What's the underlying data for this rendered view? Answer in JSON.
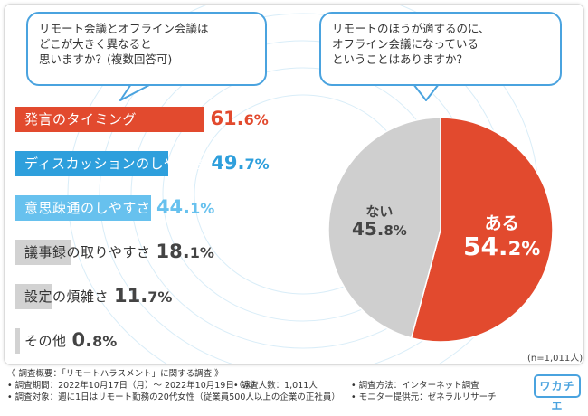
{
  "questions": {
    "left": "リモート会議とオフライン会議は\nどこが大きく異なると\n思いますか？(複数回答可)",
    "right": "リモートのほうが適するのに、\nオフライン会議になっている\nということはありますか？"
  },
  "chart_data": [
    {
      "type": "bar",
      "orientation": "horizontal",
      "categories": [
        "発言のタイミング",
        "ディスカッションのしやすさ",
        "意思疎通のしやすさ",
        "議事録の取りやすさ",
        "設定の煩雑さ",
        "その他"
      ],
      "values": [
        61.6,
        49.7,
        44.1,
        18.1,
        11.7,
        0.8
      ],
      "value_labels": [
        {
          "int": "61.",
          "dec": "6%"
        },
        {
          "int": "49.",
          "dec": "7%"
        },
        {
          "int": "44.",
          "dec": "1%"
        },
        {
          "int": "18.",
          "dec": "1%"
        },
        {
          "int": "11.",
          "dec": "7%"
        },
        {
          "int": "0.",
          "dec": "8%"
        }
      ],
      "bar_colors": [
        "#e24a2e",
        "#2e9fdc",
        "#67c1ee",
        "#d2d2d2",
        "#d2d2d2",
        "#d2d2d2"
      ],
      "label_colors": [
        "#ffffff",
        "#ffffff",
        "#ffffff",
        "#333333",
        "#333333",
        "#333333"
      ],
      "value_colors": [
        "#e24a2e",
        "#2e9fdc",
        "#67c1ee",
        "#444444",
        "#444444",
        "#444444"
      ],
      "xlim": [
        0,
        100
      ]
    },
    {
      "type": "pie",
      "categories": [
        "ある",
        "ない"
      ],
      "values": [
        54.2,
        45.8
      ],
      "value_labels": [
        {
          "int": "54.",
          "dec": "2%"
        },
        {
          "int": "45.",
          "dec": "8%"
        }
      ],
      "colors": [
        "#e24a2e",
        "#cfcfcf"
      ],
      "label_colors": [
        "#ffffff",
        "#444444"
      ],
      "start_angle": "12 o'clock",
      "direction": "clockwise",
      "sample_size": "(n=1,011人)"
    }
  ],
  "footer": {
    "heading": "《 調査概要：「リモートハラスメント」に関する調査 》",
    "period": "• 調査期間：2022年10月17日（月）～ 2022年10月19日（水）",
    "count": "• 調査人数：1,011人",
    "method": "• 調査方法：インターネット調査",
    "target": "• 調査対象：週に1日はリモート勤務の20代女性（従業員500人以上の企業の正社員）",
    "provider": "• モニター提供元：ゼネラルリサーチ"
  },
  "logo": "ワカチエ",
  "colors": {
    "accent_blue": "#4aa3df",
    "accent_red": "#e24a2e",
    "gray": "#cfcfcf"
  }
}
